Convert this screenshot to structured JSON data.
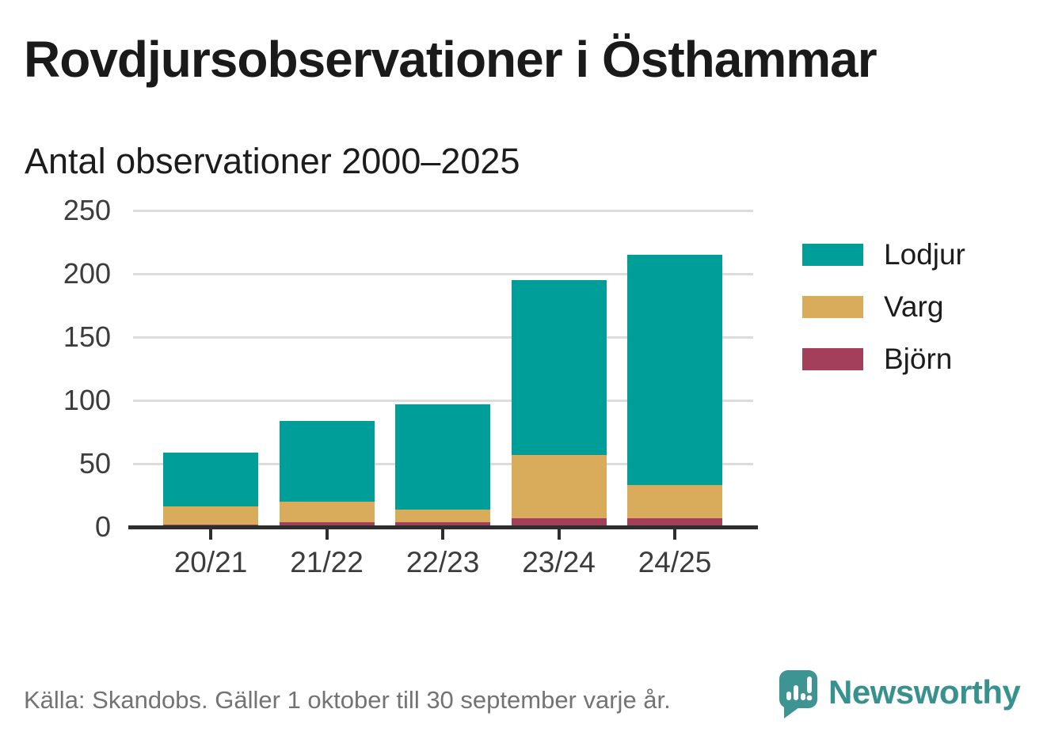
{
  "header": {
    "title": "Rovdjursobservationer i Östhammar",
    "subtitle": "Antal observationer 2000–2025"
  },
  "chart_data": {
    "type": "bar",
    "stacked": true,
    "title": "Rovdjursobservationer i Östhammar",
    "subtitle": "Antal observationer 2000–2025",
    "categories": [
      "20/21",
      "21/22",
      "22/23",
      "23/24",
      "24/25"
    ],
    "series": [
      {
        "name": "Lodjur",
        "color": "#009e99",
        "values": [
          43,
          64,
          83,
          138,
          182
        ]
      },
      {
        "name": "Varg",
        "color": "#d9ac5b",
        "values": [
          14,
          16,
          10,
          50,
          26
        ]
      },
      {
        "name": "Björn",
        "color": "#a33f5a",
        "values": [
          2,
          4,
          4,
          7,
          7
        ]
      }
    ],
    "stack_totals": [
      59,
      84,
      97,
      195,
      215
    ],
    "xlabel": "",
    "ylabel": "",
    "ylim": [
      0,
      250
    ],
    "yticks": [
      0,
      50,
      100,
      150,
      200,
      250
    ],
    "grid": true,
    "legend_position": "right"
  },
  "footer": {
    "source": "Källa: Skandobs. Gäller 1 oktober till 30 september varje år.",
    "brand": "Newsworthy"
  },
  "colors": {
    "lodjur": "#009e99",
    "varg": "#d9ac5b",
    "bjorn": "#a33f5a",
    "grid": "#dcdcdc",
    "axis": "#2e2e2e",
    "tick_label": "#3c3c3c",
    "title_text": "#1a1a1a",
    "source_text": "#737373",
    "brand_teal": "#37918f"
  }
}
